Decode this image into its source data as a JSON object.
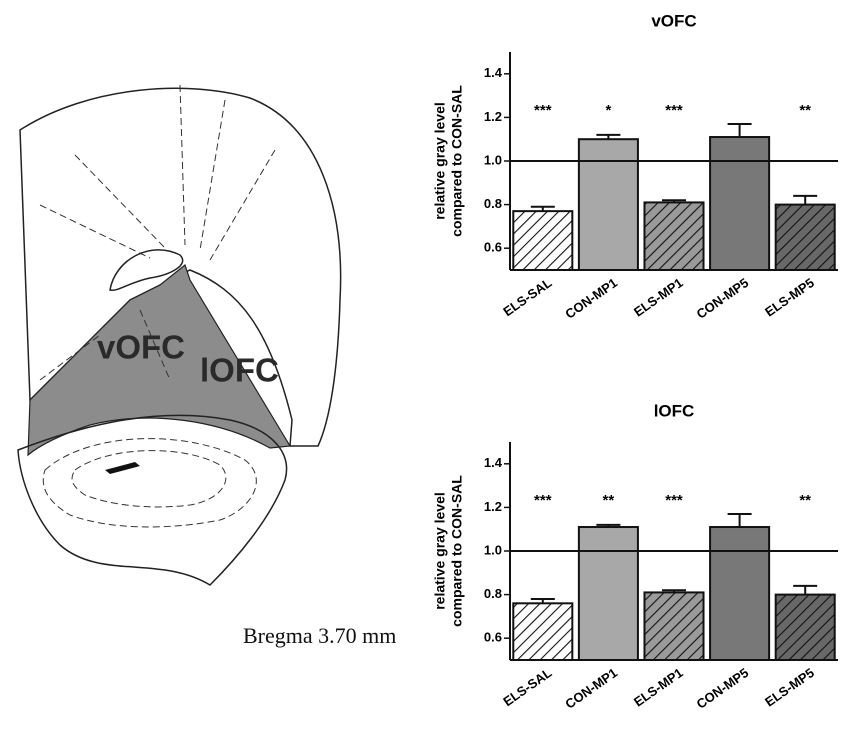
{
  "diagram": {
    "labels": [
      "vOFC",
      "lOFC"
    ],
    "caption": "Bregma 3.70 mm"
  },
  "chart_data": [
    {
      "type": "bar",
      "title": "vOFC",
      "ylabel": [
        "relative gray level",
        "compared to CON-SAL"
      ],
      "categories": [
        "ELS-SAL",
        "CON-MP1",
        "ELS-MP1",
        "CON-MP5",
        "ELS-MP5"
      ],
      "values": [
        0.77,
        1.1,
        0.81,
        1.11,
        0.8
      ],
      "errors": [
        0.02,
        0.02,
        0.01,
        0.06,
        0.04
      ],
      "annotations": [
        "***",
        "*",
        "***",
        null,
        "**"
      ],
      "colors": [
        "#ffffff",
        "#a8a8a8",
        "#9a9a9a",
        "#787878",
        "#686868"
      ],
      "hatch": [
        true,
        false,
        true,
        false,
        true
      ],
      "ylim": [
        0.5,
        1.5
      ],
      "yticks": [
        0.6,
        0.8,
        {
          "value": 1,
          "label": "1.0"
        },
        1.2,
        1.4
      ],
      "refline": 1
    },
    {
      "type": "bar",
      "title": "lOFC",
      "ylabel": [
        "relative gray level",
        "compared to CON-SAL"
      ],
      "categories": [
        "ELS-SAL",
        "CON-MP1",
        "ELS-MP1",
        "CON-MP5",
        "ELS-MP5"
      ],
      "values": [
        0.76,
        1.11,
        0.81,
        1.11,
        0.8
      ],
      "errors": [
        0.02,
        0.01,
        0.01,
        0.06,
        0.04
      ],
      "annotations": [
        "***",
        "**",
        "***",
        null,
        "**"
      ],
      "colors": [
        "#ffffff",
        "#a8a8a8",
        "#9a9a9a",
        "#787878",
        "#686868"
      ],
      "hatch": [
        true,
        false,
        true,
        false,
        true
      ],
      "ylim": [
        0.5,
        1.5
      ],
      "yticks": [
        0.6,
        0.8,
        {
          "value": 1,
          "label": "1.0"
        },
        1.2,
        1.4
      ],
      "refline": 1
    }
  ]
}
